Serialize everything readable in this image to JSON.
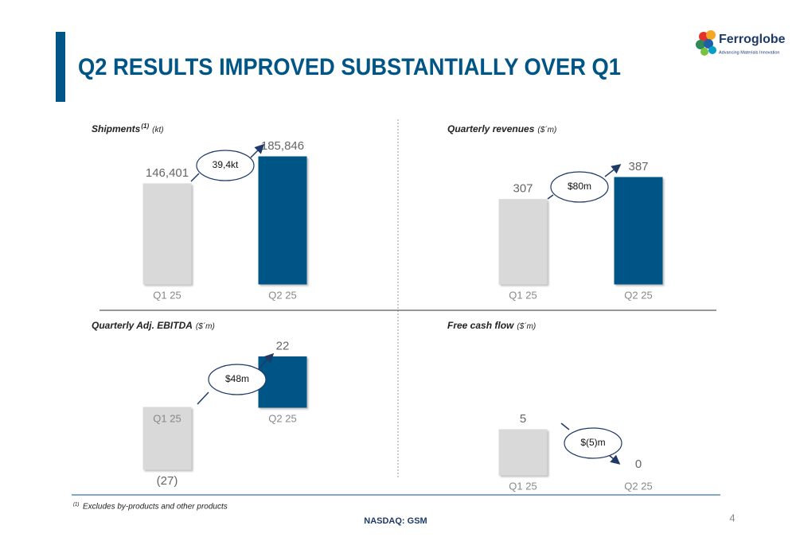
{
  "title": "Q2 RESULTS IMPROVED SUBSTANTIALLY OVER Q1",
  "logo": {
    "name": "Ferroglobe",
    "tagline": "Advancing Materials Innovation"
  },
  "chart_data": [
    {
      "type": "bar",
      "title": "Shipments",
      "title_note": "(1)",
      "unit": "(kt)",
      "categories": [
        "Q1 25",
        "Q2 25"
      ],
      "values": [
        146401,
        185846
      ],
      "value_labels": [
        "146,401",
        "185,846"
      ],
      "colors": [
        "#d9d9d9",
        "#005587"
      ],
      "annotation": "39,4kt"
    },
    {
      "type": "bar",
      "title": "Quarterly revenues",
      "unit": "($´m)",
      "categories": [
        "Q1 25",
        "Q2 25"
      ],
      "values": [
        307,
        387
      ],
      "colors": [
        "#d9d9d9",
        "#005587"
      ],
      "annotation": "$80m"
    },
    {
      "type": "bar",
      "title": "Quarterly Adj. EBITDA",
      "unit": "($´m)",
      "categories": [
        "Q1 25",
        "Q2 25"
      ],
      "values": [
        -27,
        22
      ],
      "value_labels": [
        "(27)",
        "22"
      ],
      "colors": [
        "#d9d9d9",
        "#005587"
      ],
      "annotation": "$48m"
    },
    {
      "type": "bar",
      "title": "Free cash flow",
      "unit": "($´m)",
      "categories": [
        "Q1 25",
        "Q2 25"
      ],
      "values": [
        5,
        0
      ],
      "colors": [
        "#d9d9d9",
        "#005587"
      ],
      "annotation": "$(5)m"
    }
  ],
  "footnote": {
    "marker": "(1)",
    "text": "Excludes by-products and other products"
  },
  "footer": "NASDAQ: GSM",
  "page": "4"
}
